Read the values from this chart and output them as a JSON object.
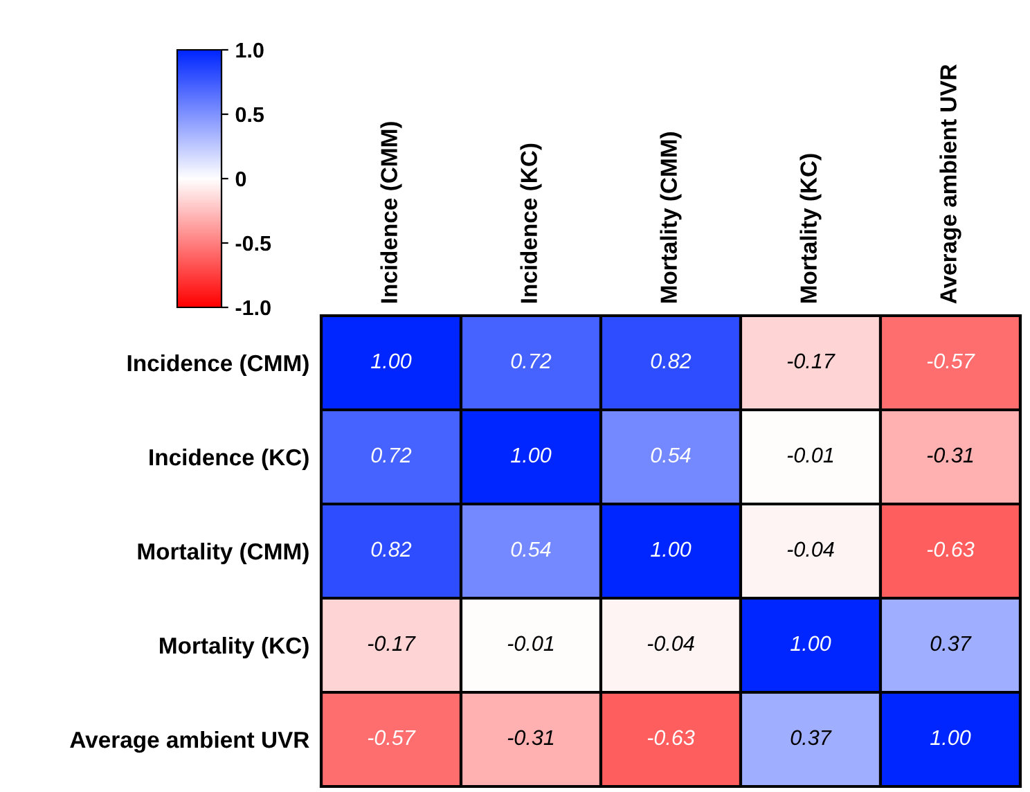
{
  "chart_data": {
    "type": "heatmap",
    "categories": [
      "Incidence (CMM)",
      "Incidence (KC)",
      "Mortality (CMM)",
      "Mortality (KC)",
      "Average ambient UVR"
    ],
    "y_categories": [
      "Incidence (CMM)",
      "Incidence (KC)",
      "Mortality (CMM)",
      "Mortality (KC)",
      "Average ambient UVR"
    ],
    "cells": [
      [
        1.0,
        0.72,
        0.82,
        -0.17,
        -0.57
      ],
      [
        0.72,
        1.0,
        0.54,
        -0.01,
        -0.31
      ],
      [
        0.82,
        0.54,
        1.0,
        -0.04,
        -0.63
      ],
      [
        -0.17,
        -0.01,
        -0.04,
        1.0,
        0.37
      ],
      [
        -0.57,
        -0.31,
        -0.63,
        0.37,
        1.0
      ]
    ],
    "cell_labels": [
      [
        "1.00",
        "0.72",
        "0.82",
        "-0.17",
        "-0.57"
      ],
      [
        "0.72",
        "1.00",
        "0.54",
        "-0.01",
        "-0.31"
      ],
      [
        "0.82",
        "0.54",
        "1.00",
        "-0.04",
        "-0.63"
      ],
      [
        "-0.17",
        "-0.01",
        "-0.04",
        "1.00",
        "0.37"
      ],
      [
        "-0.57",
        "-0.31",
        "-0.63",
        "0.37",
        "1.00"
      ]
    ],
    "clim": [
      -1,
      1
    ],
    "cticks": [
      {
        "value": 1,
        "label": "1.0"
      },
      0.5,
      0,
      -0.5,
      {
        "value": -1,
        "label": "-1.0"
      }
    ]
  }
}
